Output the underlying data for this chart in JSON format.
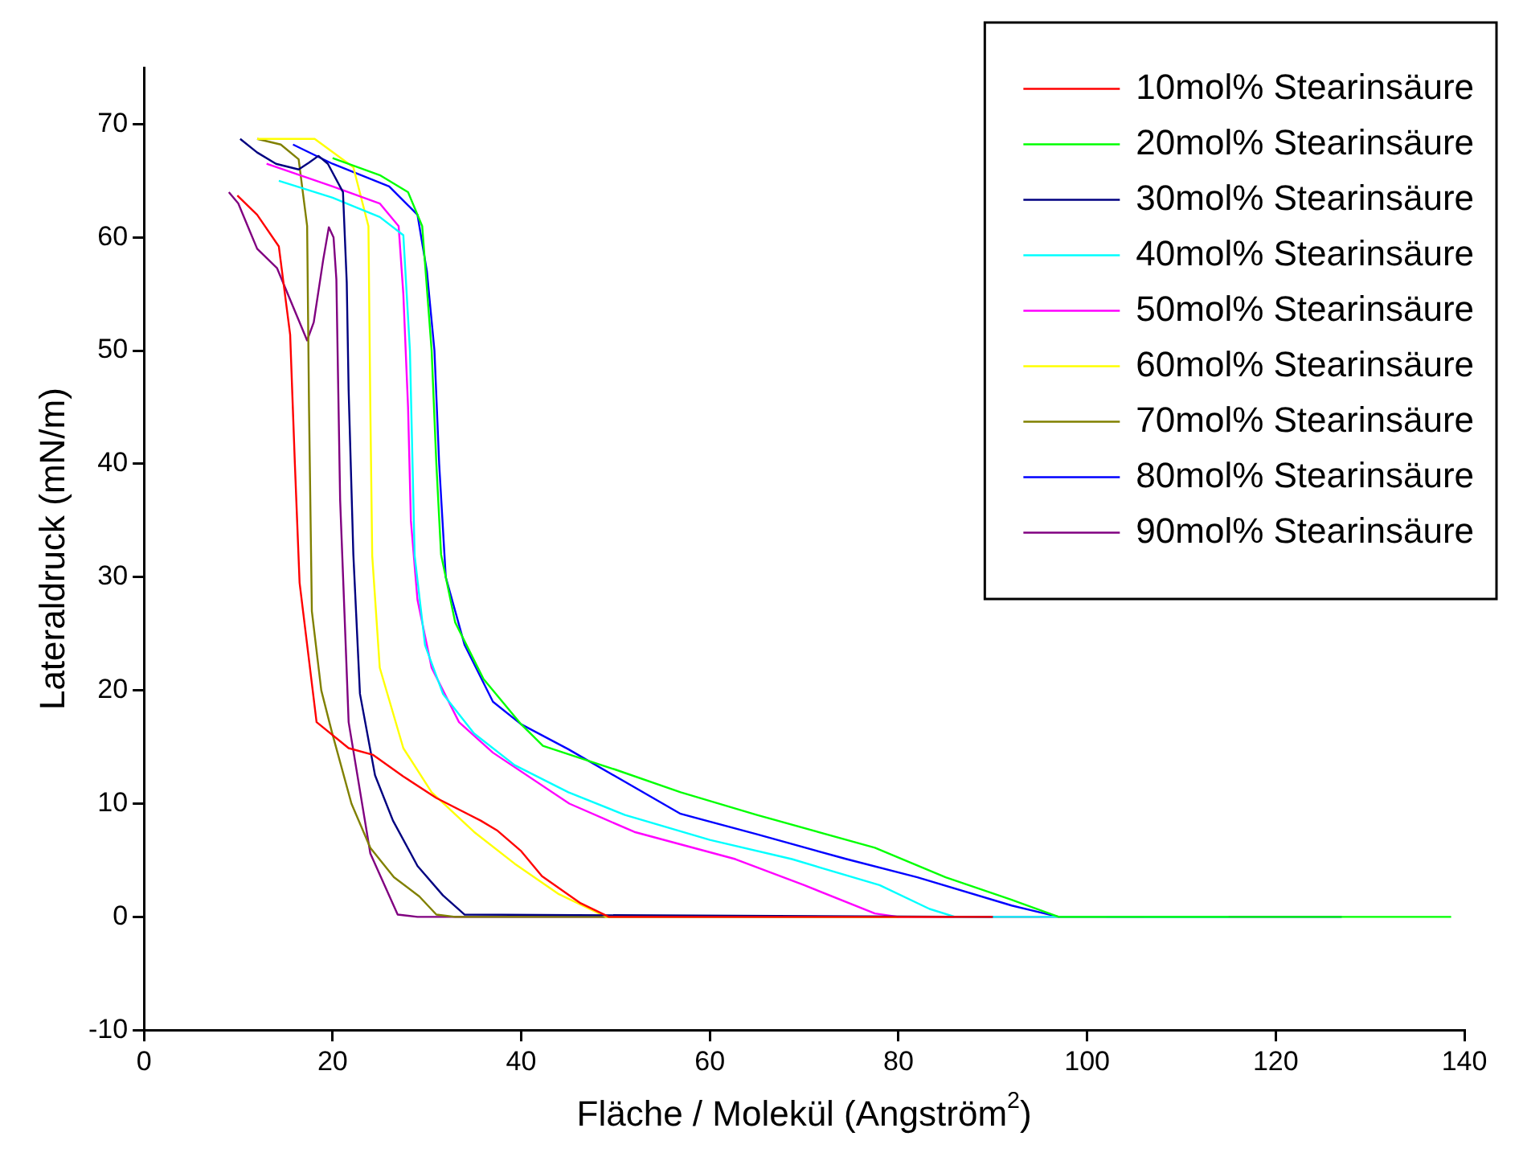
{
  "chart_data": {
    "type": "line",
    "xlabel": "Fläche / Molekül (Angström$^{2}$)",
    "ylabel": "Lateraldruck (mN/m)",
    "xlim": [
      0,
      140
    ],
    "ylim": [
      -10,
      75
    ],
    "xticks": [
      0,
      20,
      40,
      60,
      80,
      100,
      120,
      140
    ],
    "yticks": [
      -10,
      0,
      10,
      20,
      30,
      40,
      50,
      60,
      70
    ],
    "grid": false,
    "legend": "top right",
    "marker": "none",
    "line_style": "solid",
    "series": [
      {
        "name": "10mol% Stearinsäure",
        "color": "#ff0000",
        "x": [
          9.9,
          12,
          14.3,
          15.5,
          16,
          16.5,
          18.3,
          21.7,
          24.3,
          27.5,
          31,
          35.7,
          37.5,
          40,
          42.2,
          46.3,
          49.3,
          60,
          90
        ],
        "values": [
          63.7,
          62,
          59.2,
          51.4,
          40,
          29.5,
          17.2,
          14.9,
          14.3,
          12.4,
          10.5,
          8.5,
          7.6,
          5.8,
          3.6,
          1.2,
          0,
          0,
          0
        ]
      },
      {
        "name": "20mol% Stearinsäure",
        "color": "#00ff00",
        "x": [
          20,
          25,
          28,
          29.5,
          30.5,
          31,
          31.5,
          33,
          36,
          40,
          42.3,
          50,
          56.9,
          65,
          77.5,
          85,
          92,
          97,
          138.6
        ],
        "values": [
          67,
          65.5,
          64,
          61,
          50,
          40,
          32,
          26,
          21,
          17,
          15.1,
          13,
          11,
          9,
          6.1,
          3.5,
          1.5,
          0,
          0
        ]
      },
      {
        "name": "30mol% Stearinsäure",
        "color": "#000080",
        "x": [
          10.2,
          12,
          14,
          16.4,
          17.5,
          18.5,
          19.5,
          21.1,
          21.5,
          21.7,
          22.2,
          22.9,
          24.5,
          26.4,
          29,
          31.7,
          34,
          90
        ],
        "values": [
          68.7,
          67.5,
          66.5,
          66,
          66.6,
          67.2,
          66.5,
          64,
          56,
          46.5,
          32,
          19.7,
          12.5,
          8.5,
          4.5,
          1.9,
          0.2,
          0
        ]
      },
      {
        "name": "40mol% Stearinsäure",
        "color": "#00ffff",
        "x": [
          14.3,
          20,
          25,
          27.5,
          28.2,
          28.7,
          29.8,
          31.7,
          35,
          39.3,
          45,
          51,
          60,
          68.7,
          78,
          83.3,
          86,
          115
        ],
        "values": [
          65,
          63.5,
          61.8,
          60.2,
          50,
          31.9,
          24,
          19.7,
          16.2,
          13.4,
          11,
          9,
          6.8,
          5.1,
          2.8,
          0.7,
          0,
          0
        ]
      },
      {
        "name": "50mol% Stearinsäure",
        "color": "#ff00ff",
        "x": [
          13,
          20,
          25,
          27,
          27.5,
          28,
          28.3,
          29,
          30.5,
          33.4,
          37,
          45.1,
          52,
          62.7,
          70,
          77.5,
          80,
          106
        ],
        "values": [
          66.5,
          64.5,
          63,
          61,
          55,
          45,
          35,
          28,
          22,
          17.2,
          14.5,
          10,
          7.5,
          5.1,
          2.8,
          0.3,
          0,
          0
        ]
      },
      {
        "name": "60mol% Stearinsäure",
        "color": "#ffff00",
        "x": [
          12,
          18.1,
          22.2,
          23.8,
          24,
          24.2,
          25,
          27.5,
          30.5,
          35,
          39.3,
          44,
          48,
          49,
          102
        ],
        "values": [
          68.7,
          68.7,
          66.2,
          61,
          45,
          31.9,
          22,
          14.9,
          11,
          7.5,
          4.7,
          2,
          0.4,
          0,
          0
        ]
      },
      {
        "name": "70mol% Stearinsäure",
        "color": "#808000",
        "x": [
          12,
          14.5,
          16.4,
          17.3,
          17.5,
          17.8,
          18.8,
          19.9,
          22,
          24,
          26.5,
          29.2,
          31,
          33,
          95
        ],
        "values": [
          68.7,
          68.2,
          66.9,
          61,
          45,
          27,
          20,
          16.4,
          10,
          6.1,
          3.5,
          1.8,
          0.2,
          0,
          0
        ]
      },
      {
        "name": "80mol% Stearinsäure",
        "color": "#0000ff",
        "x": [
          15.8,
          20,
          26,
          29,
          30,
          30.8,
          31.3,
          32,
          34,
          37,
          40,
          45,
          56.9,
          65,
          74.5,
          82,
          92,
          97,
          127
        ],
        "values": [
          68.2,
          66.5,
          64.5,
          62,
          57,
          50,
          40,
          30,
          24,
          19,
          17,
          14.8,
          9.1,
          7.3,
          5.1,
          3.5,
          1,
          0,
          0
        ]
      },
      {
        "name": "90mol% Stearinsäure",
        "color": "#800080",
        "x": [
          9,
          10,
          11,
          12,
          14.1,
          15.5,
          17.3,
          18,
          19,
          19.6,
          20.1,
          20.4,
          20.8,
          21.7,
          24,
          26.9,
          29,
          80
        ],
        "values": [
          64,
          63,
          61,
          59,
          57.3,
          54.5,
          50.9,
          52.5,
          58,
          60.9,
          60,
          56.3,
          36.8,
          17.2,
          5.6,
          0.2,
          0,
          0
        ]
      }
    ]
  }
}
